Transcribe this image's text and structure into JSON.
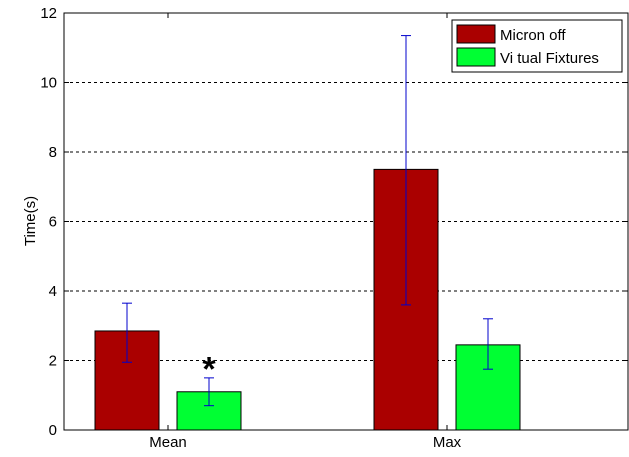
{
  "chart_data": {
    "type": "bar",
    "categories": [
      "Mean",
      "Max"
    ],
    "series": [
      {
        "name": "Micron off",
        "color": "#aa0000",
        "values": [
          2.85,
          7.5
        ],
        "error_low": [
          1.95,
          3.6
        ],
        "error_high": [
          3.65,
          11.35
        ]
      },
      {
        "name": "Vi tual Fixtures",
        "color": "#00ff33",
        "values": [
          1.1,
          2.45
        ],
        "error_low": [
          0.7,
          1.75
        ],
        "error_high": [
          1.5,
          3.2
        ]
      }
    ],
    "ylabel": "Time(s)",
    "xlabel": "",
    "title": "",
    "ylim": [
      0,
      12
    ],
    "yticks": [
      0,
      2,
      4,
      6,
      8,
      10,
      12
    ],
    "grid": "horizontal dashed",
    "legend_position": "top-right",
    "error_bar_color": "#0000cc",
    "annotations": [
      {
        "text": "*",
        "category": "Mean",
        "series": "Vi tual Fixtures",
        "y": 2.0
      }
    ]
  }
}
